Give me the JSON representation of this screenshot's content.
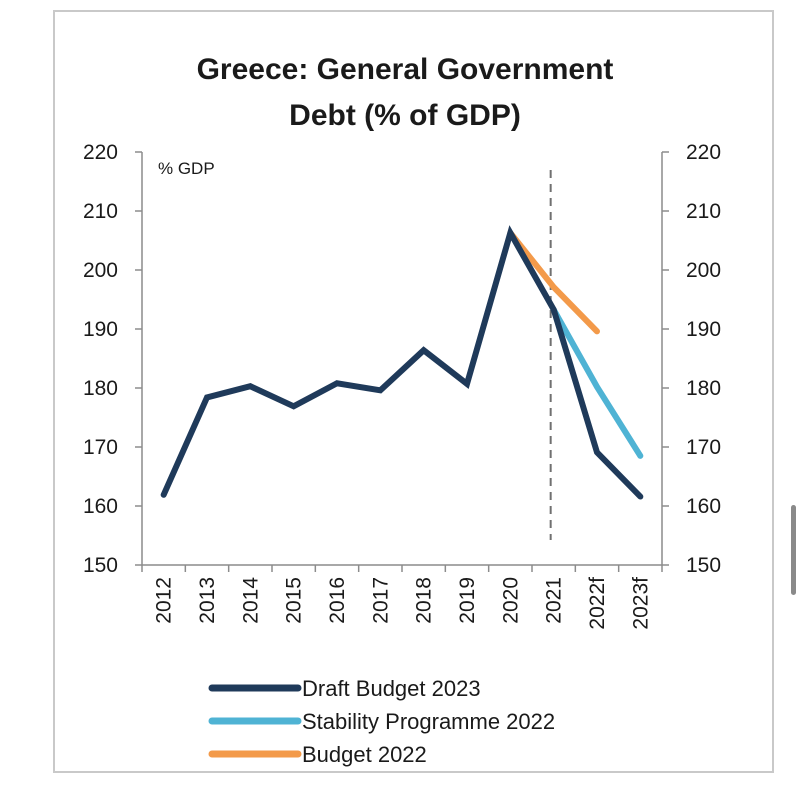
{
  "chart_data": {
    "type": "line",
    "title": [
      "Greece: General Government",
      "Debt (% of GDP)"
    ],
    "unit_label": "% GDP",
    "xlabel": "",
    "ylabel": "",
    "categories": [
      "2012",
      "2013",
      "2014",
      "2015",
      "2016",
      "2017",
      "2018",
      "2019",
      "2020",
      "2021",
      "2022f",
      "2023f"
    ],
    "ylim": [
      150,
      220
    ],
    "yticks": [
      150,
      160,
      170,
      180,
      190,
      200,
      210,
      220
    ],
    "y_axes": [
      "left",
      "right"
    ],
    "grid": false,
    "vertical_marker_at": "2021",
    "series": [
      {
        "name": "Draft Budget 2023",
        "color": "#1f3a5a",
        "values": [
          161.9,
          178.4,
          180.3,
          176.9,
          180.8,
          179.6,
          186.4,
          180.7,
          206.3,
          193.3,
          169.1,
          161.6
        ]
      },
      {
        "name": "Stability Programme 2022",
        "color": "#4fb3d4",
        "values": [
          null,
          null,
          null,
          null,
          null,
          null,
          null,
          null,
          null,
          193.3,
          180.2,
          168.5
        ]
      },
      {
        "name": "Budget 2022",
        "color": "#f39a4a",
        "values": [
          null,
          null,
          null,
          null,
          null,
          null,
          null,
          null,
          206.3,
          197.1,
          189.6,
          null
        ]
      }
    ],
    "legend_position": "bottom"
  }
}
